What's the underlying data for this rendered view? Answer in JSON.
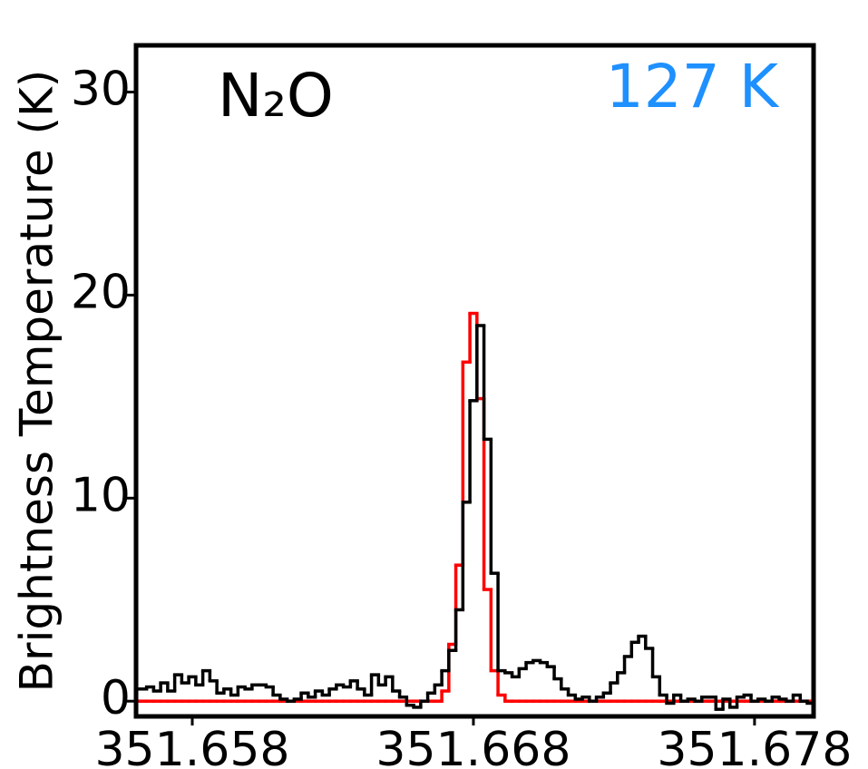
{
  "chart_data": {
    "type": "step",
    "y_label": "Brightness Temperature (K)",
    "annotations": [
      {
        "text": "N₂O",
        "color": "#000000"
      },
      {
        "text": "127 K",
        "color": "#1e90ff"
      }
    ],
    "x": [
      351.656,
      351.65625,
      351.6565,
      351.65675,
      351.657,
      351.65725,
      351.6575,
      351.65775,
      351.658,
      351.65825,
      351.6585,
      351.65875,
      351.659,
      351.65925,
      351.6595,
      351.65975,
      351.66,
      351.66025,
      351.6605,
      351.66075,
      351.661,
      351.66125,
      351.6615,
      351.66175,
      351.662,
      351.66225,
      351.6625,
      351.66275,
      351.663,
      351.66325,
      351.6635,
      351.66375,
      351.664,
      351.66425,
      351.6645,
      351.66475,
      351.665,
      351.66525,
      351.6655,
      351.66575,
      351.666,
      351.66625,
      351.6665,
      351.66675,
      351.667,
      351.66725,
      351.6675,
      351.66775,
      351.668,
      351.66825,
      351.6685,
      351.66875,
      351.669,
      351.66925,
      351.6695,
      351.66975,
      351.67,
      351.67025,
      351.6705,
      351.67075,
      351.671,
      351.67125,
      351.6715,
      351.67175,
      351.672,
      351.67225,
      351.6725,
      351.67275,
      351.673,
      351.67325,
      351.6735,
      351.67375,
      351.674,
      351.67425,
      351.6745,
      351.67475,
      351.675,
      351.67525,
      351.6755,
      351.67575,
      351.676,
      351.67625,
      351.6765,
      351.67675,
      351.677,
      351.67725,
      351.6775,
      351.67775,
      351.678,
      351.67825,
      351.6785,
      351.67875,
      351.679,
      351.67925,
      351.6795,
      351.67975,
      351.68
    ],
    "series": [
      {
        "color": "#ff0000",
        "values": [
          0,
          0,
          0,
          0,
          0,
          0,
          0,
          0,
          0,
          0,
          0,
          0,
          0,
          0,
          0,
          0,
          0,
          0,
          0,
          0,
          0,
          0,
          0,
          0,
          0,
          0,
          0,
          0,
          0,
          0,
          0,
          0,
          0,
          0,
          0,
          0,
          0,
          0,
          0,
          0,
          0,
          0,
          0,
          0,
          0.5,
          2.8,
          6.7,
          16.7,
          19.1,
          14.9,
          5.5,
          1.5,
          0.3,
          0,
          0,
          0,
          0,
          0,
          0,
          0,
          0,
          0,
          0,
          0,
          0,
          0,
          0,
          0,
          0,
          0,
          0,
          0,
          0,
          0,
          0,
          0,
          0,
          0,
          0,
          0,
          0,
          0,
          0,
          0,
          0,
          0,
          0,
          0,
          0,
          0,
          0,
          0,
          0,
          0,
          0,
          0,
          0
        ]
      },
      {
        "color": "#000000",
        "values": [
          0.6,
          0.6,
          0.7,
          0.5,
          0.9,
          0.5,
          1.3,
          0.9,
          1.2,
          0.8,
          1.5,
          1.0,
          0.4,
          0.6,
          0.3,
          0.7,
          0.6,
          0.8,
          0.8,
          0.7,
          0.3,
          0.1,
          0.0,
          0.1,
          0.4,
          0.2,
          0.5,
          0.3,
          0.6,
          0.8,
          0.7,
          1.0,
          0.6,
          0.3,
          1.3,
          0.8,
          1.2,
          0.5,
          0.2,
          -0.2,
          -0.3,
          0.0,
          0.4,
          0.8,
          1.5,
          2.5,
          4.5,
          9.8,
          14.8,
          18.5,
          12.9,
          6.3,
          1.5,
          1.4,
          1.2,
          1.6,
          1.9,
          2.0,
          1.9,
          1.7,
          1.1,
          0.6,
          0.3,
          0.1,
          0.2,
          0.0,
          0.2,
          0.4,
          0.9,
          1.4,
          2.2,
          2.9,
          3.2,
          2.6,
          1.2,
          0.3,
          -0.1,
          0.3,
          0.0,
          0.1,
          0.0,
          0.2,
          0.2,
          -0.4,
          0.1,
          -0.3,
          0.2,
          0.3,
          0.0,
          0.1,
          0.0,
          0.2,
          0.1,
          0.0,
          0.3,
          0.0,
          -0.1
        ]
      }
    ],
    "xlim": [
      351.656,
      351.6801
    ],
    "ylim": [
      -0.75,
      32.3
    ],
    "xticks": [
      351.658,
      351.668,
      351.678
    ],
    "yticks": [
      0,
      10,
      20,
      30
    ]
  }
}
